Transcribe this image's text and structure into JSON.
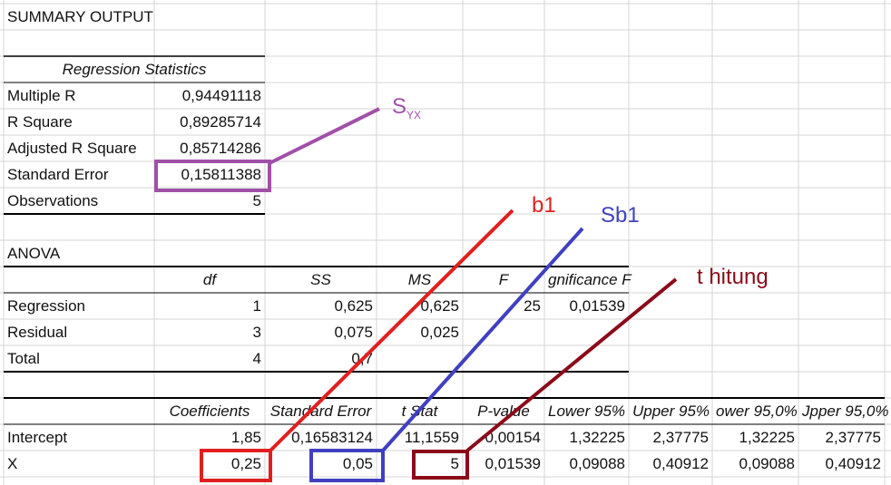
{
  "title": "SUMMARY OUTPUT",
  "regression_statistics": {
    "title": "Regression Statistics",
    "rows": [
      [
        "Multiple R",
        "0,94491118"
      ],
      [
        "R Square",
        "0,89285714"
      ],
      [
        "Adjusted R Square",
        "0,85714286"
      ],
      [
        "Standard Error",
        "0,15811388"
      ],
      [
        "Observations",
        "5"
      ]
    ]
  },
  "anova": {
    "title": "ANOVA",
    "headers": [
      "df",
      "SS",
      "MS",
      "F",
      "gnificance F"
    ],
    "rows": [
      [
        "Regression",
        "1",
        "0,625",
        "0,625",
        "25",
        "0,01539"
      ],
      [
        "Residual",
        "3",
        "0,075",
        "0,025"
      ],
      [
        "Total",
        "4",
        "0,7"
      ]
    ]
  },
  "coefficients": {
    "headers": [
      "Coefficients",
      "Standard Error",
      "t Stat",
      "P-value",
      "Lower 95%",
      "Upper 95%",
      "ower 95,0%",
      "Jpper 95,0%"
    ],
    "rows": [
      [
        "Intercept",
        "1,85",
        "0,16583124",
        "11,1559",
        "0,00154",
        "1,32225",
        "2,37775",
        "1,32225",
        "2,37775"
      ],
      [
        "X",
        "0,25",
        "0,05",
        "5",
        "0,01539",
        "0,09088",
        "0,40912",
        "0,09088",
        "0,40912"
      ]
    ]
  },
  "annotations": {
    "syx": {
      "text": "S",
      "subscript": "YX"
    },
    "b1": "b1",
    "sb1": "Sb1",
    "t_hitung": "t hitung"
  }
}
